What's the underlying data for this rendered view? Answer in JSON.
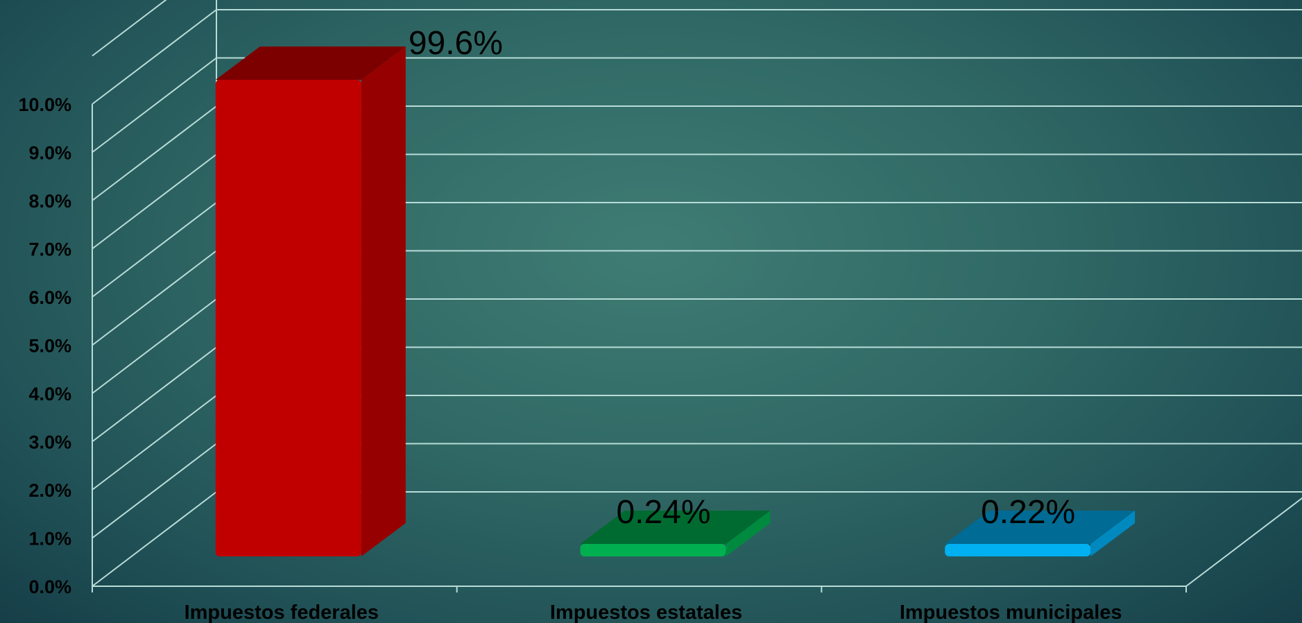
{
  "chart_data": {
    "type": "bar",
    "categories": [
      "Impuestos federales",
      "Impuestos estatales",
      "Impuestos municipales"
    ],
    "values": [
      99.6,
      0.24,
      0.22
    ],
    "data_labels": [
      "99.6%",
      "0.24%",
      "0.22%"
    ],
    "yticks": [
      "0.0%",
      "1.0%",
      "2.0%",
      "3.0%",
      "4.0%",
      "5.0%",
      "6.0%",
      "7.0%",
      "8.0%",
      "9.0%",
      "10.0%"
    ],
    "ylim": [
      0,
      10
    ],
    "grid": true,
    "style": "3d-column",
    "colors": {
      "front": [
        "#c00000",
        "#00b050",
        "#00b0f0"
      ],
      "side": [
        "#960000",
        "#008a3f",
        "#0089bf"
      ],
      "top": [
        "#7d0000",
        "#006b30",
        "#006b94"
      ]
    }
  }
}
